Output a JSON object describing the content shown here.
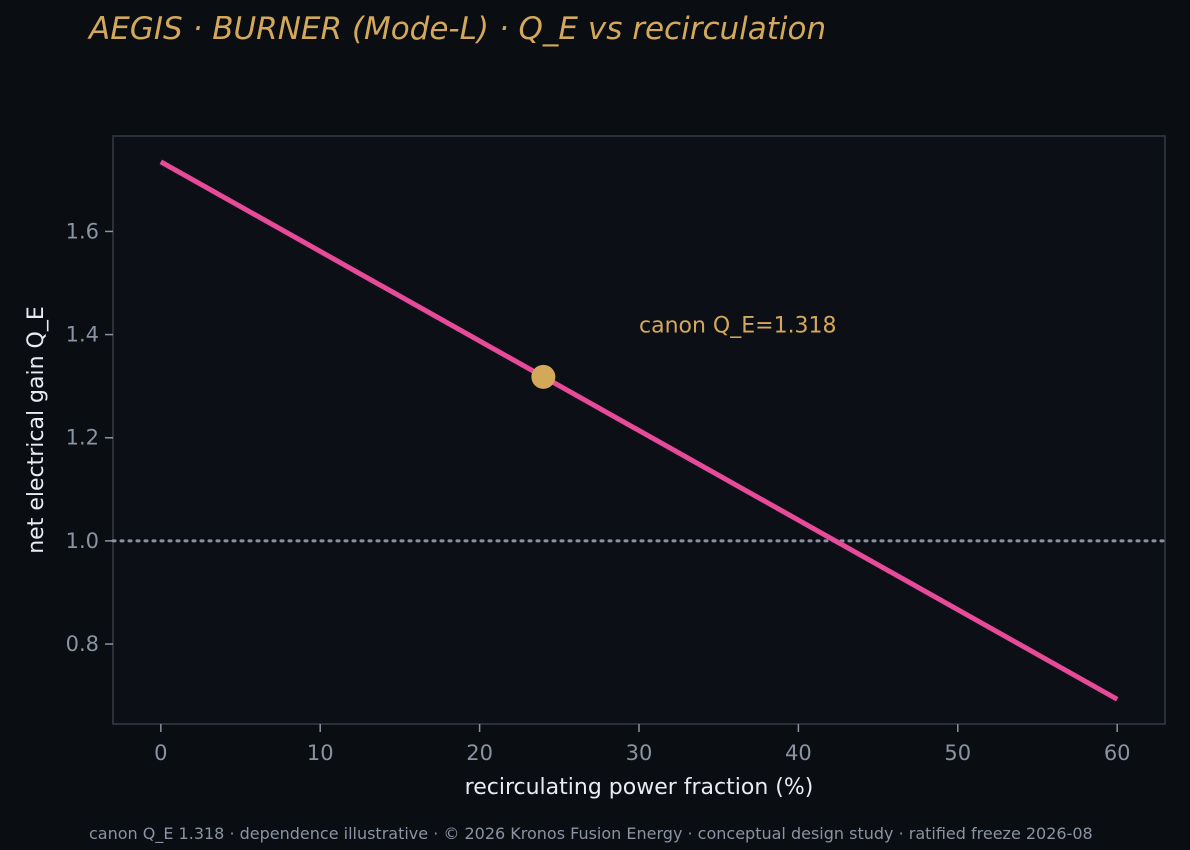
{
  "header": {
    "title": "AEGIS · BURNER (Mode-L)  ·  Q_E vs recirculation"
  },
  "footer": {
    "text": "canon Q_E 1.318 · dependence illustrative · © 2026 Kronos Fusion Energy · conceptual design study · ratified freeze 2026-08"
  },
  "chart_data": {
    "type": "line",
    "title": "AEGIS · BURNER (Mode-L)  ·  Q_E vs recirculation",
    "xlabel": "recirculating power fraction (%)",
    "ylabel": "net electrical gain Q_E",
    "xlim": [
      -3,
      63
    ],
    "ylim": [
      0.645,
      1.785
    ],
    "x_ticks": [
      0,
      10,
      20,
      30,
      40,
      50,
      60
    ],
    "x_tick_labels": [
      "0",
      "10",
      "20",
      "30",
      "40",
      "50",
      "60"
    ],
    "y_ticks": [
      0.8,
      1.0,
      1.2,
      1.4,
      1.6
    ],
    "y_tick_labels": [
      "0.8",
      "1.0",
      "1.2",
      "1.4",
      "1.6"
    ],
    "grid": false,
    "series": [
      {
        "x": [
          0,
          60
        ],
        "y": [
          1.735,
          0.693
        ],
        "color": "#e84a9a"
      }
    ],
    "reference_line": {
      "y": 1.0,
      "style": "dotted",
      "color": "#8a93a3"
    },
    "marker": {
      "x": 24,
      "y": 1.318,
      "color": "#d4a85a"
    },
    "annotation": {
      "text": "canon Q_E=1.318",
      "x": 30,
      "y": 1.42,
      "color": "#d4a85a"
    },
    "colors": {
      "background": "#0a0d12",
      "plot_background": "#0d0f17",
      "frame": "#353b45"
    }
  }
}
